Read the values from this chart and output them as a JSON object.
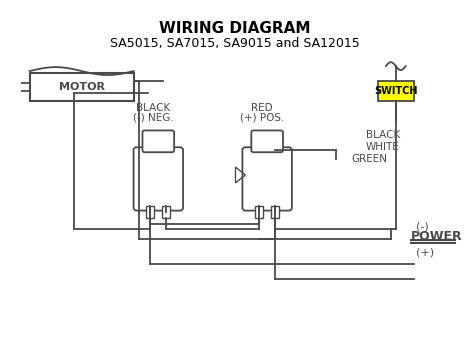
{
  "title_line1": "WIRING DIAGRAM",
  "title_line2": "SA5015, SA7015, SA9015 and SA12015",
  "bg_color": "#ffffff",
  "line_color": "#4a4a4a",
  "title_color": "#000000",
  "switch_bg": "#ffff00",
  "switch_text": "SWITCH",
  "motor_text": "MOTOR",
  "power_text": "POWER",
  "black_label": "BLACK",
  "neg_label": "(-) NEG.",
  "red_label": "RED",
  "pos_label": "(+) POS.",
  "black_wire": "BLACK",
  "white_wire": "WHITE",
  "green_wire": "GREEN",
  "neg_power": "(-)",
  "pos_power": "(+)"
}
